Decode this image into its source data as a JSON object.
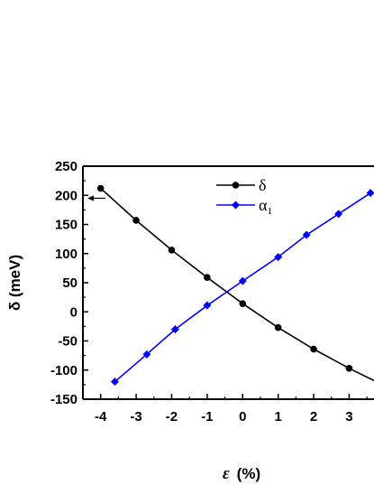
{
  "chart_data": {
    "type": "line",
    "xlabel_symbol": "ε",
    "xlabel_unit": "(%)",
    "ylabel": "δ (meV)",
    "xlim": [
      -4.5,
      3.7
    ],
    "ylim": [
      -150,
      250
    ],
    "xticks": [
      -4,
      -3,
      -2,
      -1,
      0,
      1,
      2,
      3
    ],
    "xtick_labels": [
      "-4",
      "-3",
      "-2",
      "-1",
      "0",
      "1",
      "2",
      "3"
    ],
    "yticks": [
      -150,
      -100,
      -50,
      0,
      50,
      100,
      150,
      200,
      250
    ],
    "ytick_labels": [
      "-150",
      "-100",
      "-50",
      "0",
      "50",
      "100",
      "150",
      "200",
      "250"
    ],
    "legend_position": "top-center",
    "series": [
      {
        "name": "δ",
        "legend_sub": "",
        "color": "#000000",
        "marker": "circle",
        "x": [
          -4,
          -3,
          -2,
          -1,
          0,
          1,
          2,
          3,
          3.7
        ],
        "y": [
          212,
          157,
          106,
          59,
          14,
          -27,
          -64,
          -97,
          -118
        ]
      },
      {
        "name": "α",
        "legend_sub": "1",
        "color": "#0000ff",
        "marker": "diamond",
        "x": [
          -3.6,
          -2.7,
          -1.9,
          -1,
          0,
          1,
          1.8,
          2.7,
          3.6
        ],
        "y": [
          -120,
          -73,
          -30,
          11,
          53,
          94,
          132,
          168,
          204
        ]
      }
    ],
    "annotation": "arrow pointing left to the δ axis"
  }
}
